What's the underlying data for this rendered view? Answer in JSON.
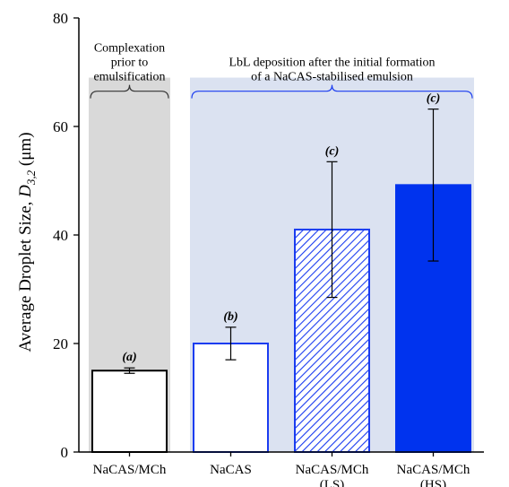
{
  "chart_data": {
    "type": "bar",
    "title": "",
    "xlabel": "",
    "ylabel": {
      "prefix": "Average Droplet Size, ",
      "symbol": "D",
      "subscript": "3,2",
      "unit": " (μm)"
    },
    "ylim": [
      0,
      80
    ],
    "yticks": [
      "0",
      "20",
      "40",
      "60",
      "80"
    ],
    "grid": false,
    "categories": [
      {
        "line1": "NaCAS/MCh",
        "line2": ""
      },
      {
        "line1": "NaCAS",
        "line2": ""
      },
      {
        "line1": "NaCAS/MCh",
        "line2": "(LS)"
      },
      {
        "line1": "NaCAS/MCh",
        "line2": "(HS)"
      }
    ],
    "values": [
      15.0,
      20.0,
      41.0,
      49.2
    ],
    "errors": [
      0.5,
      3.0,
      12.5,
      14.0
    ],
    "significance_letters": [
      "(a)",
      "(b)",
      "(c)",
      "(c)"
    ],
    "bar_styles": [
      {
        "fill": "white",
        "stroke": "#000000"
      },
      {
        "fill": "white",
        "stroke": "#1a3cf0"
      },
      {
        "fill": "hatched",
        "stroke": "#1a3cf0"
      },
      {
        "fill": "solid",
        "stroke": "#0033ee"
      }
    ],
    "regions": [
      {
        "label_lines": [
          "Complexation",
          "prior to",
          "emulsification"
        ],
        "bars": [
          0
        ],
        "background": "#d9d9d9",
        "brace_color": "#333333",
        "text_color": "#000000"
      },
      {
        "label_lines": [
          "LbL deposition after the initial formation",
          "of a NaCAS-stabilised emulsion"
        ],
        "bars": [
          1,
          2,
          3
        ],
        "background": "#dbe2f1",
        "brace_color": "#1a3cf0",
        "text_color": "#1a3cf0"
      }
    ]
  }
}
